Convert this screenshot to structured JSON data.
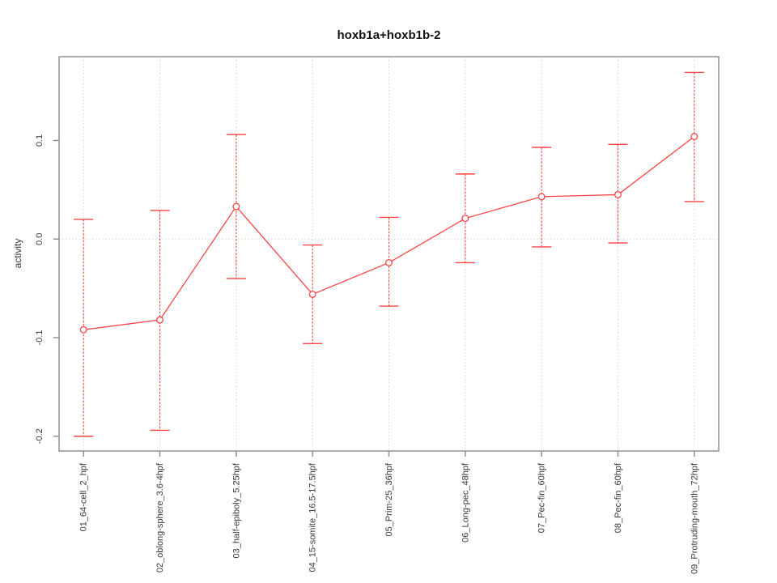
{
  "chart_data": {
    "type": "line",
    "title": "hoxb1a+hoxb1b-2",
    "xlabel": "",
    "ylabel": "activity",
    "categories": [
      "01_64-cell_2_hpf",
      "02_oblong-sphere_3.6-4hpf",
      "03_half-epiboly_5.25hpf",
      "04_15-somite_16.5-17.5hpf",
      "05_Prim-25_36hpf",
      "06_Long-pec_48hpf",
      "07_Pec-fin_60hpf",
      "08_Pec-fin_60hpf",
      "09_Protruding-mouth_72hpf"
    ],
    "series": [
      {
        "name": "activity",
        "marker": "open-circle",
        "color": "#fa4545",
        "values": [
          -0.092,
          -0.082,
          0.033,
          -0.056,
          -0.024,
          0.021,
          0.043,
          0.045,
          0.104
        ],
        "error_low": [
          -0.2,
          -0.194,
          -0.04,
          -0.106,
          -0.068,
          -0.024,
          -0.008,
          -0.004,
          0.038
        ],
        "error_high": [
          0.02,
          0.029,
          0.106,
          -0.006,
          0.022,
          0.066,
          0.093,
          0.096,
          0.169
        ]
      }
    ],
    "ylim": [
      -0.215,
      0.185
    ],
    "yticks": [
      -0.2,
      -0.1,
      0,
      0.1
    ],
    "ytick_labels": [
      "-0.2",
      "-0.1",
      "0.0",
      "0.1"
    ],
    "grid": {
      "vertical_dotted_per_category": true,
      "zero_line_dotted": true
    },
    "legend": "none",
    "axis_color": "#8a8a8a",
    "grid_color": "#d6d6d6",
    "text_color": "#383838",
    "background_color": "#ffffff"
  }
}
